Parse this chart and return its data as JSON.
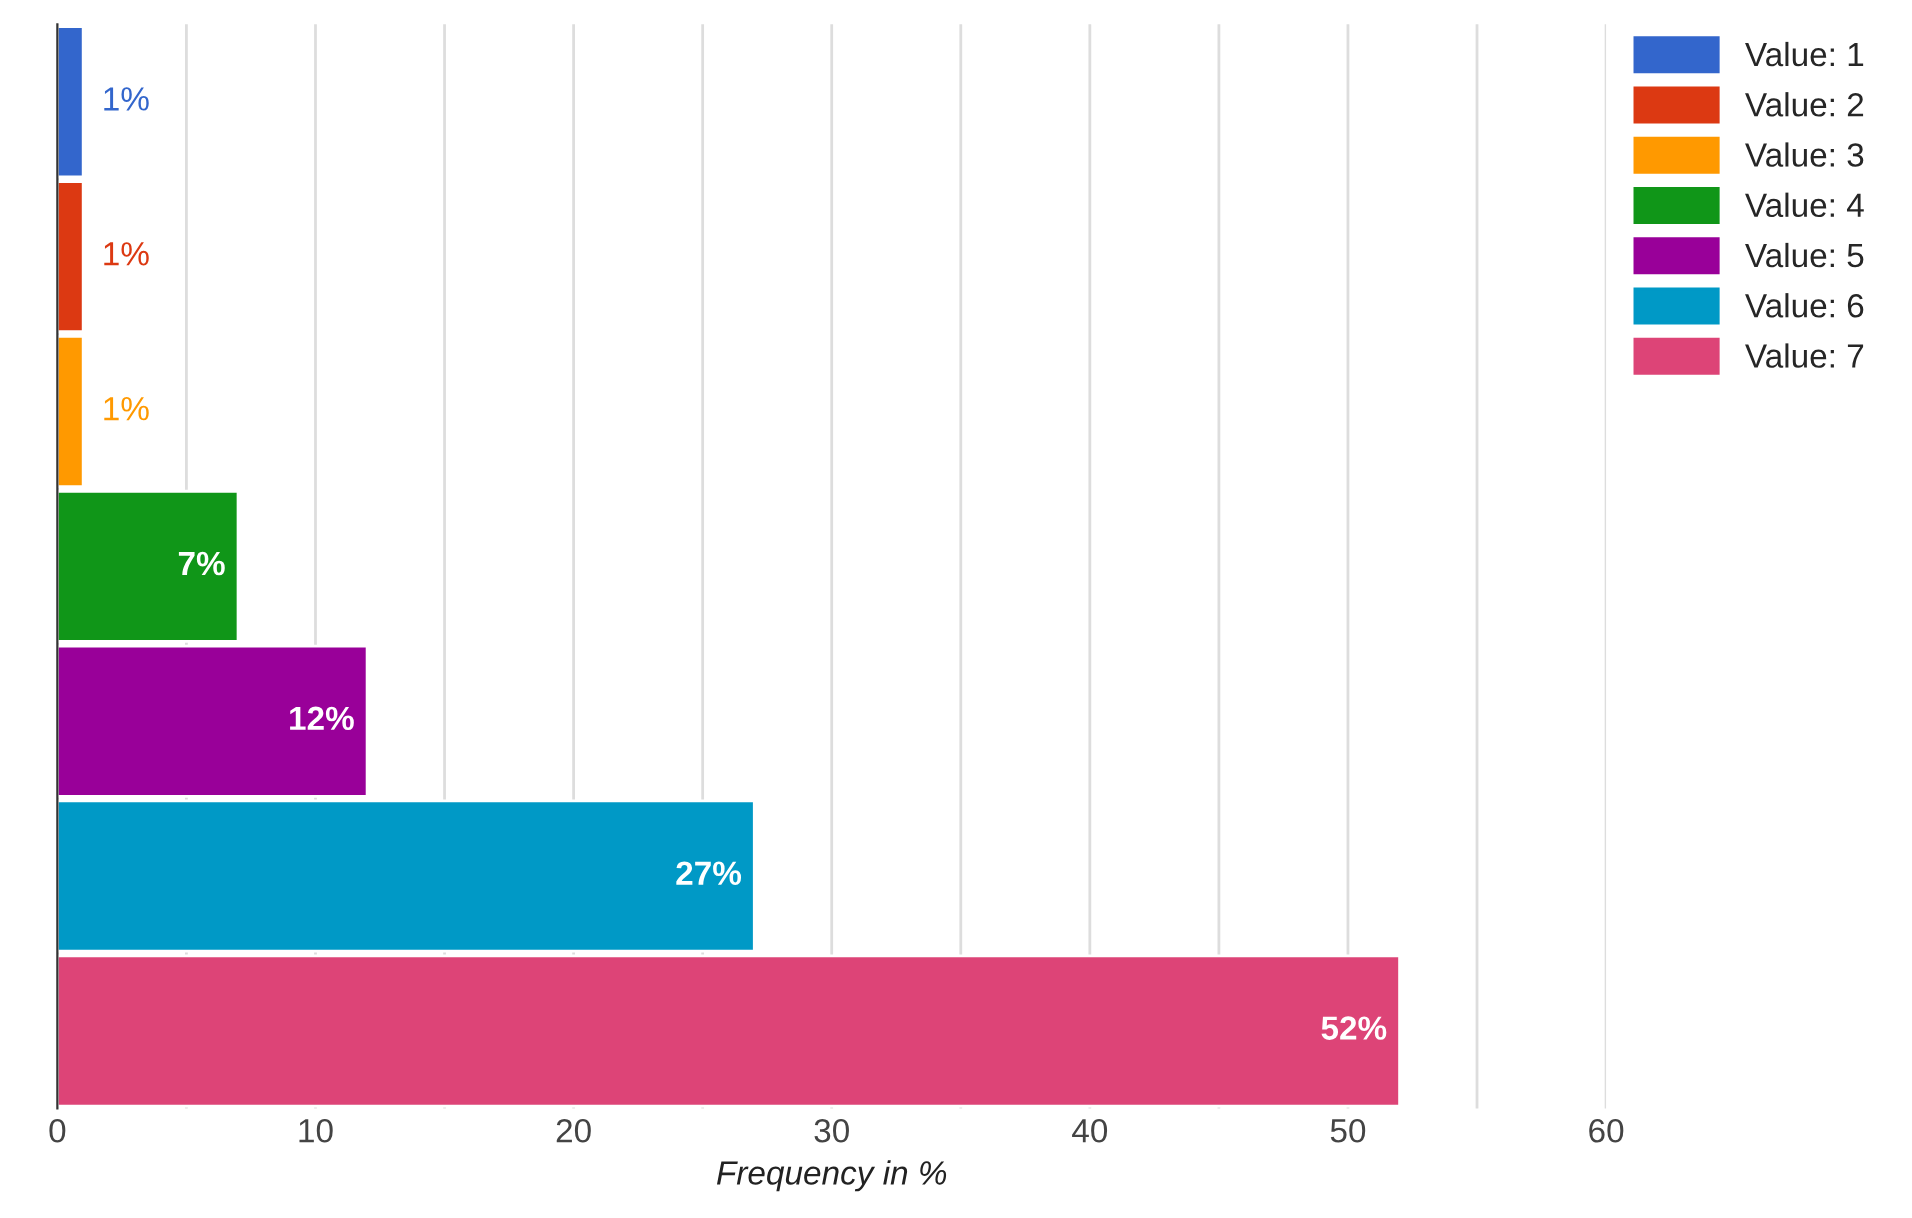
{
  "chart_data": {
    "type": "bar",
    "orientation": "horizontal",
    "xlabel": "Frequency in %",
    "categories": [
      null,
      null,
      null,
      null,
      null,
      null,
      null
    ],
    "series": [
      {
        "name": "Value: 1",
        "color": "#3366cc",
        "values": [
          1,
          null,
          null,
          null,
          null,
          null,
          null
        ],
        "value_labels": [
          "1%",
          null,
          null,
          null,
          null,
          null,
          null
        ]
      },
      {
        "name": "Value: 2",
        "color": "#dc3912",
        "values": [
          null,
          1,
          null,
          null,
          null,
          null,
          null
        ],
        "value_labels": [
          null,
          "1%",
          null,
          null,
          null,
          null,
          null
        ]
      },
      {
        "name": "Value: 3",
        "color": "#ff9900",
        "values": [
          null,
          null,
          1,
          null,
          null,
          null,
          null
        ],
        "value_labels": [
          null,
          null,
          "1%",
          null,
          null,
          null,
          null
        ]
      },
      {
        "name": "Value: 4",
        "color": "#109618",
        "values": [
          null,
          null,
          null,
          7,
          null,
          null,
          null
        ],
        "value_labels": [
          null,
          null,
          null,
          "7%",
          null,
          null,
          null
        ]
      },
      {
        "name": "Value: 5",
        "color": "#990099",
        "values": [
          null,
          null,
          null,
          null,
          12,
          null,
          null
        ],
        "value_labels": [
          null,
          null,
          null,
          null,
          "12%",
          null,
          null
        ]
      },
      {
        "name": "Value: 6",
        "color": "#0099c6",
        "values": [
          null,
          null,
          null,
          null,
          null,
          27,
          null
        ],
        "value_labels": [
          null,
          null,
          null,
          null,
          null,
          "27%",
          null
        ]
      },
      {
        "name": "Value: 7",
        "color": "#dd4477",
        "values": [
          null,
          null,
          null,
          null,
          null,
          null,
          52
        ],
        "value_labels": [
          null,
          null,
          null,
          null,
          null,
          null,
          "52%"
        ]
      }
    ],
    "xlim": [
      0,
      60
    ],
    "xticks": [
      0,
      {
        "value": 5,
        "label": null
      },
      10,
      {
        "value": 15,
        "label": null
      },
      20,
      {
        "value": 25,
        "label": null
      },
      30,
      {
        "value": 35,
        "label": null
      },
      40,
      {
        "value": 45,
        "label": null
      },
      50,
      {
        "value": 55,
        "label": null
      },
      60
    ],
    "grid": "x",
    "legend": "top right",
    "tick_labels": "x"
  }
}
